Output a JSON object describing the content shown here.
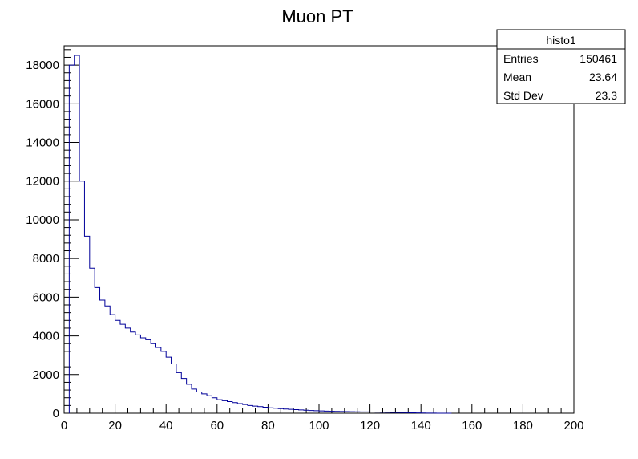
{
  "chart_data": {
    "type": "histogram",
    "title": "Muon PT",
    "xlabel": "",
    "ylabel": "",
    "xlim": [
      0,
      200
    ],
    "ylim": [
      0,
      19000
    ],
    "bin_width": 2,
    "bin_start": 2,
    "x_ticks": [
      0,
      20,
      40,
      60,
      80,
      100,
      120,
      140,
      160,
      180,
      200
    ],
    "x_tick_labels": [
      "0",
      "20",
      "40",
      "60",
      "80",
      "100",
      "120",
      "140",
      "160",
      "180",
      "200"
    ],
    "y_ticks": [
      0,
      2000,
      4000,
      6000,
      8000,
      10000,
      12000,
      14000,
      16000,
      18000
    ],
    "y_tick_labels": [
      "0",
      "2000",
      "4000",
      "6000",
      "8000",
      "10000",
      "12000",
      "14000",
      "16000",
      "18000"
    ],
    "grid": false,
    "line_color": "#000099",
    "values": [
      18000,
      18500,
      12000,
      9150,
      7500,
      6500,
      5850,
      5550,
      5100,
      4800,
      4600,
      4400,
      4200,
      4050,
      3900,
      3800,
      3600,
      3400,
      3200,
      2900,
      2550,
      2100,
      1800,
      1500,
      1250,
      1100,
      1000,
      900,
      800,
      700,
      650,
      600,
      550,
      500,
      450,
      400,
      370,
      340,
      310,
      280,
      260,
      240,
      220,
      200,
      185,
      170,
      155,
      140,
      130,
      120,
      110,
      100,
      95,
      90,
      85,
      80,
      75,
      70,
      65,
      60,
      55,
      50,
      45,
      40,
      35,
      30,
      25,
      20,
      15,
      10,
      5,
      3,
      2,
      1,
      0
    ],
    "stats_box": {
      "name": "histo1",
      "rows": [
        {
          "label": "Entries",
          "value": "150461"
        },
        {
          "label": "Mean",
          "value": "23.64"
        },
        {
          "label": "Std Dev",
          "value": "23.3"
        }
      ]
    }
  }
}
